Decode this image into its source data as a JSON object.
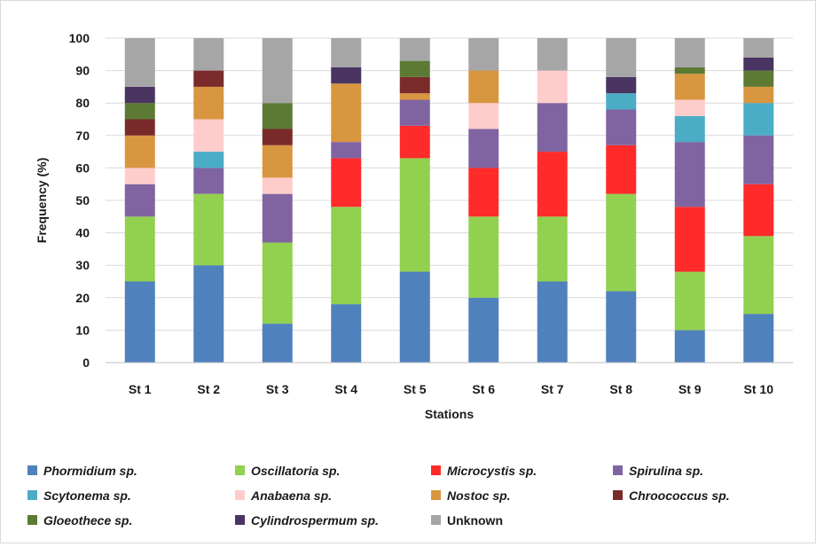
{
  "chart_data": {
    "type": "bar",
    "stacked": true,
    "title": "",
    "xlabel": "Stations",
    "ylabel": "Frequency (%)",
    "ylim": [
      0,
      100
    ],
    "yticks": [
      0,
      10,
      20,
      30,
      40,
      50,
      60,
      70,
      80,
      90,
      100
    ],
    "grid": true,
    "legend_position": "bottom",
    "categories": [
      "St 1",
      "St 2",
      "St 3",
      "St 4",
      "St 5",
      "St 6",
      "St 7",
      "St 8",
      "St 9",
      "St 10"
    ],
    "series": [
      {
        "name": "Phormidium sp.",
        "italic": true,
        "color": "#4f81bd",
        "values": [
          25,
          30,
          12,
          18,
          28,
          20,
          25,
          22,
          10,
          15
        ]
      },
      {
        "name": "Oscillatoria sp.",
        "italic": true,
        "color": "#92d050",
        "values": [
          20,
          22,
          25,
          30,
          35,
          25,
          20,
          30,
          18,
          24
        ]
      },
      {
        "name": "Microcystis sp.",
        "italic": true,
        "color": "#ff2a2a",
        "values": [
          0,
          0,
          0,
          15,
          10,
          15,
          20,
          15,
          20,
          16
        ]
      },
      {
        "name": "Spirulina sp.",
        "italic": true,
        "color": "#8064a2",
        "values": [
          10,
          8,
          15,
          5,
          8,
          12,
          15,
          11,
          20,
          15
        ]
      },
      {
        "name": "Scytonema sp.",
        "italic": true,
        "color": "#4bacc6",
        "values": [
          0,
          5,
          0,
          0,
          0,
          0,
          0,
          5,
          8,
          10
        ]
      },
      {
        "name": "Anabaena sp.",
        "italic": true,
        "color": "#ffcccc",
        "values": [
          5,
          10,
          5,
          0,
          0,
          8,
          10,
          0,
          5,
          0
        ]
      },
      {
        "name": "Nostoc sp.",
        "italic": true,
        "color": "#d99640",
        "values": [
          10,
          10,
          10,
          18,
          2,
          10,
          0,
          0,
          8,
          5
        ]
      },
      {
        "name": "Chroococcus sp.",
        "italic": true,
        "color": "#7b2a2a",
        "values": [
          5,
          5,
          5,
          0,
          5,
          0,
          0,
          0,
          0,
          0
        ]
      },
      {
        "name": "Gloeothece sp.",
        "italic": true,
        "color": "#5c7a34",
        "values": [
          5,
          0,
          8,
          0,
          5,
          0,
          0,
          0,
          2,
          5
        ]
      },
      {
        "name": "Cylindrospermum sp.",
        "italic": true,
        "color": "#4a3462",
        "values": [
          5,
          0,
          0,
          5,
          0,
          0,
          0,
          5,
          0,
          4
        ]
      },
      {
        "name": "Unknown",
        "italic": false,
        "color": "#a6a6a6",
        "values": [
          15,
          10,
          20,
          9,
          7,
          10,
          10,
          12,
          9,
          6
        ]
      }
    ]
  }
}
